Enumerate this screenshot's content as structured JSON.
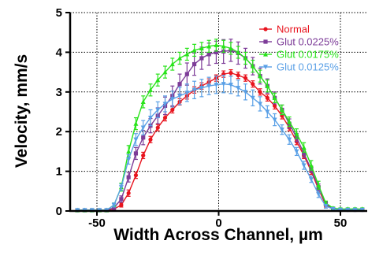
{
  "chart_data": {
    "type": "line",
    "xlabel": "Width Across Channel, µm",
    "ylabel": "Velocity, mm/s",
    "xlim": [
      -61,
      61
    ],
    "ylim": [
      0,
      5
    ],
    "x_ticks": [
      -50,
      0,
      50
    ],
    "y_ticks": [
      0,
      1,
      2,
      3,
      4,
      5
    ],
    "grid": "dotted",
    "legend_position": "top-right",
    "x": [
      -58,
      -55,
      -52,
      -49,
      -46,
      -43,
      -40,
      -37,
      -34,
      -31,
      -28,
      -25,
      -22,
      -19,
      -16,
      -13,
      -10,
      -7,
      -4,
      -1,
      2,
      5,
      8,
      11,
      14,
      17,
      20,
      23,
      26,
      29,
      32,
      35,
      38,
      41,
      44,
      47,
      50,
      53,
      56,
      59
    ],
    "series": [
      {
        "name": "Normal",
        "color": "#e8141e",
        "marker": "circle",
        "values": [
          0.02,
          0.02,
          0.02,
          0.02,
          0.02,
          0.05,
          0.15,
          0.45,
          0.9,
          1.4,
          1.8,
          2.1,
          2.35,
          2.55,
          2.75,
          2.9,
          3.05,
          3.15,
          3.25,
          3.35,
          3.45,
          3.48,
          3.42,
          3.35,
          3.2,
          3.0,
          2.85,
          2.65,
          2.4,
          2.1,
          1.75,
          1.4,
          1.0,
          0.55,
          0.15,
          0.05,
          0.03,
          0.03,
          0.03,
          0.03
        ],
        "errors": [
          0.02,
          0.02,
          0.02,
          0.02,
          0.02,
          0.03,
          0.05,
          0.08,
          0.08,
          0.08,
          0.08,
          0.08,
          0.08,
          0.08,
          0.08,
          0.08,
          0.08,
          0.08,
          0.08,
          0.08,
          0.08,
          0.08,
          0.08,
          0.08,
          0.08,
          0.08,
          0.08,
          0.08,
          0.08,
          0.08,
          0.08,
          0.08,
          0.08,
          0.08,
          0.05,
          0.03,
          0.02,
          0.02,
          0.02,
          0.02
        ]
      },
      {
        "name": "Glut 0.0225%",
        "color": "#7d3c98",
        "marker": "square",
        "values": [
          0.02,
          0.02,
          0.02,
          0.02,
          0.02,
          0.08,
          0.3,
          0.85,
          1.45,
          1.85,
          2.15,
          2.4,
          2.65,
          2.9,
          3.2,
          3.45,
          3.7,
          3.85,
          3.95,
          4.0,
          4.02,
          4.05,
          3.98,
          3.85,
          3.65,
          3.4,
          3.15,
          2.85,
          2.55,
          2.2,
          1.85,
          1.45,
          1.05,
          0.6,
          0.18,
          0.05,
          0.03,
          0.03,
          0.03,
          0.03
        ],
        "errors": [
          0.02,
          0.02,
          0.02,
          0.02,
          0.02,
          0.04,
          0.08,
          0.12,
          0.15,
          0.18,
          0.18,
          0.2,
          0.22,
          0.25,
          0.25,
          0.28,
          0.28,
          0.28,
          0.28,
          0.28,
          0.3,
          0.28,
          0.28,
          0.25,
          0.22,
          0.2,
          0.18,
          0.15,
          0.12,
          0.12,
          0.1,
          0.1,
          0.08,
          0.08,
          0.05,
          0.03,
          0.02,
          0.02,
          0.02,
          0.02
        ]
      },
      {
        "name": "Glut 0.0175%",
        "color": "#29e31b",
        "marker": "triangle-up",
        "values": [
          0.02,
          0.02,
          0.02,
          0.02,
          0.02,
          0.15,
          0.6,
          1.5,
          2.2,
          2.75,
          3.05,
          3.3,
          3.5,
          3.7,
          3.85,
          3.95,
          4.05,
          4.1,
          4.15,
          4.18,
          4.15,
          4.1,
          4.0,
          3.85,
          3.65,
          3.4,
          3.15,
          2.85,
          2.55,
          2.25,
          1.95,
          1.6,
          1.15,
          0.65,
          0.2,
          0.07,
          0.05,
          0.05,
          0.05,
          0.05
        ],
        "errors": [
          0.02,
          0.02,
          0.02,
          0.02,
          0.02,
          0.05,
          0.1,
          0.15,
          0.15,
          0.15,
          0.15,
          0.15,
          0.15,
          0.15,
          0.15,
          0.15,
          0.15,
          0.15,
          0.15,
          0.15,
          0.15,
          0.15,
          0.15,
          0.15,
          0.15,
          0.15,
          0.15,
          0.12,
          0.12,
          0.12,
          0.12,
          0.12,
          0.12,
          0.1,
          0.05,
          0.03,
          0.03,
          0.03,
          0.03,
          0.03
        ]
      },
      {
        "name": "Glut 0.0125%",
        "color": "#5aa0e6",
        "marker": "triangle-down",
        "values": [
          0.02,
          0.02,
          0.02,
          0.02,
          0.02,
          0.15,
          0.6,
          1.3,
          1.8,
          2.1,
          2.35,
          2.55,
          2.7,
          2.82,
          2.9,
          2.98,
          3.05,
          3.1,
          3.15,
          3.18,
          3.2,
          3.18,
          3.1,
          3.0,
          2.85,
          2.7,
          2.5,
          2.3,
          2.05,
          1.8,
          1.5,
          1.15,
          0.8,
          0.42,
          0.12,
          0.05,
          0.03,
          0.03,
          0.03,
          0.03
        ],
        "errors": [
          0.02,
          0.02,
          0.02,
          0.02,
          0.02,
          0.05,
          0.08,
          0.12,
          0.15,
          0.18,
          0.2,
          0.2,
          0.2,
          0.2,
          0.22,
          0.22,
          0.22,
          0.22,
          0.22,
          0.22,
          0.22,
          0.22,
          0.2,
          0.2,
          0.2,
          0.18,
          0.15,
          0.15,
          0.12,
          0.12,
          0.1,
          0.1,
          0.08,
          0.08,
          0.05,
          0.03,
          0.02,
          0.02,
          0.02,
          0.02
        ]
      }
    ]
  }
}
